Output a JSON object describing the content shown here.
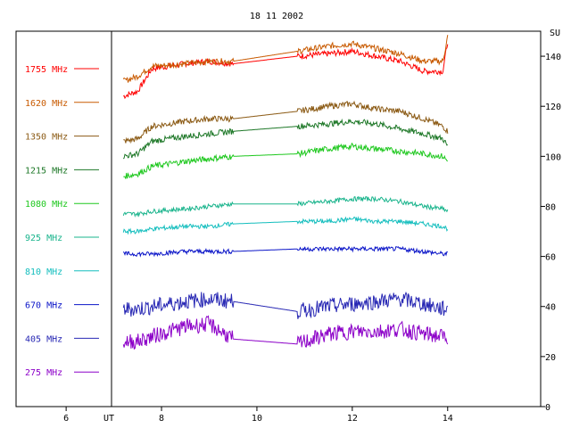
{
  "chart_data": {
    "type": "line",
    "title": "18 11 2002",
    "xlabel": "UT",
    "ylabel": "SU",
    "xlim": [
      4.95,
      15.95
    ],
    "ylim": [
      0,
      150
    ],
    "x_ticks": [
      "6",
      "8",
      "10",
      "12",
      "14"
    ],
    "x_tick_values": [
      6,
      8,
      10,
      12,
      14
    ],
    "y_ticks": [
      "0",
      "20",
      "40",
      "60",
      "80",
      "100",
      "120",
      "140"
    ],
    "y_tick_values": [
      0,
      20,
      40,
      60,
      80,
      100,
      120,
      140
    ],
    "legend_placement": "left",
    "series": [
      {
        "name": "1755 MHz",
        "color": "#ff0000",
        "x": [
          7.2,
          7.5,
          7.8,
          8.5,
          9.0,
          9.5,
          10.85,
          11.5,
          12.0,
          12.5,
          13.0,
          13.5,
          13.9,
          14.0
        ],
        "y": [
          124,
          126,
          135,
          137,
          138,
          137,
          140,
          141,
          142,
          140,
          138,
          134,
          134,
          146
        ]
      },
      {
        "name": "1620 MHz",
        "color": "#c85a00",
        "x": [
          7.2,
          7.5,
          7.8,
          8.5,
          9.0,
          9.5,
          10.85,
          11.5,
          12.0,
          12.5,
          13.0,
          13.5,
          13.9,
          14.0
        ],
        "y": [
          130,
          132,
          136,
          137,
          138,
          138,
          142,
          144,
          145,
          143,
          141,
          138,
          138,
          148
        ]
      },
      {
        "name": "1350 MHz",
        "color": "#8b5a14",
        "x": [
          7.2,
          7.5,
          7.8,
          8.5,
          9.0,
          9.5,
          10.85,
          11.5,
          12.0,
          12.5,
          13.0,
          13.5,
          13.9,
          14.0
        ],
        "y": [
          106,
          107,
          112,
          114,
          115,
          115,
          118,
          120,
          121,
          119,
          118,
          115,
          112,
          110
        ]
      },
      {
        "name": "1215 MHz",
        "color": "#1e7828",
        "x": [
          7.2,
          7.5,
          7.8,
          8.5,
          9.0,
          9.5,
          10.85,
          11.5,
          12.0,
          12.5,
          13.0,
          13.5,
          13.9,
          14.0
        ],
        "y": [
          100,
          101,
          106,
          108,
          109,
          110,
          112,
          113,
          114,
          113,
          111,
          109,
          107,
          104
        ]
      },
      {
        "name": "1080 MHz",
        "color": "#1ec81e",
        "x": [
          7.2,
          7.5,
          7.8,
          8.5,
          9.0,
          9.5,
          10.85,
          11.5,
          12.0,
          12.5,
          13.0,
          13.5,
          13.9,
          14.0
        ],
        "y": [
          92,
          93,
          96,
          98,
          99,
          100,
          101,
          103,
          104,
          103,
          102,
          101,
          100,
          98
        ]
      },
      {
        "name": "925 MHz",
        "color": "#19b48c",
        "x": [
          7.2,
          7.5,
          7.8,
          8.5,
          9.0,
          9.5,
          10.85,
          11.5,
          12.0,
          12.5,
          13.0,
          13.5,
          13.9,
          14.0
        ],
        "y": [
          77,
          77,
          78,
          79,
          80,
          81,
          81,
          82,
          83,
          83,
          82,
          80,
          79,
          78
        ]
      },
      {
        "name": "810 MHz",
        "color": "#14bebe",
        "x": [
          7.2,
          7.5,
          7.8,
          8.5,
          9.0,
          9.5,
          10.85,
          11.5,
          12.0,
          12.5,
          13.0,
          13.5,
          13.9,
          14.0
        ],
        "y": [
          70,
          70,
          71,
          72,
          72,
          73,
          74,
          74,
          75,
          74,
          74,
          73,
          72,
          71
        ]
      },
      {
        "name": "670 MHz",
        "color": "#0a14c8",
        "x": [
          7.2,
          7.5,
          7.8,
          8.5,
          9.0,
          9.5,
          10.85,
          11.5,
          12.0,
          12.5,
          13.0,
          13.5,
          13.9,
          14.0
        ],
        "y": [
          61,
          61,
          61,
          62,
          62,
          62,
          63,
          63,
          63,
          63,
          63,
          62,
          61,
          61
        ]
      },
      {
        "name": "405 MHz",
        "color": "#2828b4",
        "x": [
          7.2,
          7.5,
          7.8,
          8.5,
          9.0,
          9.5,
          10.85,
          11.5,
          12.0,
          12.5,
          13.0,
          13.5,
          13.9,
          14.0
        ],
        "y": [
          39,
          39,
          40,
          42,
          43,
          42,
          38,
          40,
          41,
          42,
          43,
          41,
          39,
          39
        ]
      },
      {
        "name": "275 MHz",
        "color": "#8c00c8",
        "x": [
          7.2,
          7.5,
          7.8,
          8.5,
          9.0,
          9.5,
          10.85,
          11.5,
          12.0,
          12.5,
          13.0,
          13.5,
          13.9,
          14.0
        ],
        "y": [
          26,
          26,
          28,
          32,
          33,
          27,
          25,
          29,
          30,
          30,
          31,
          29,
          28,
          28
        ]
      }
    ]
  }
}
